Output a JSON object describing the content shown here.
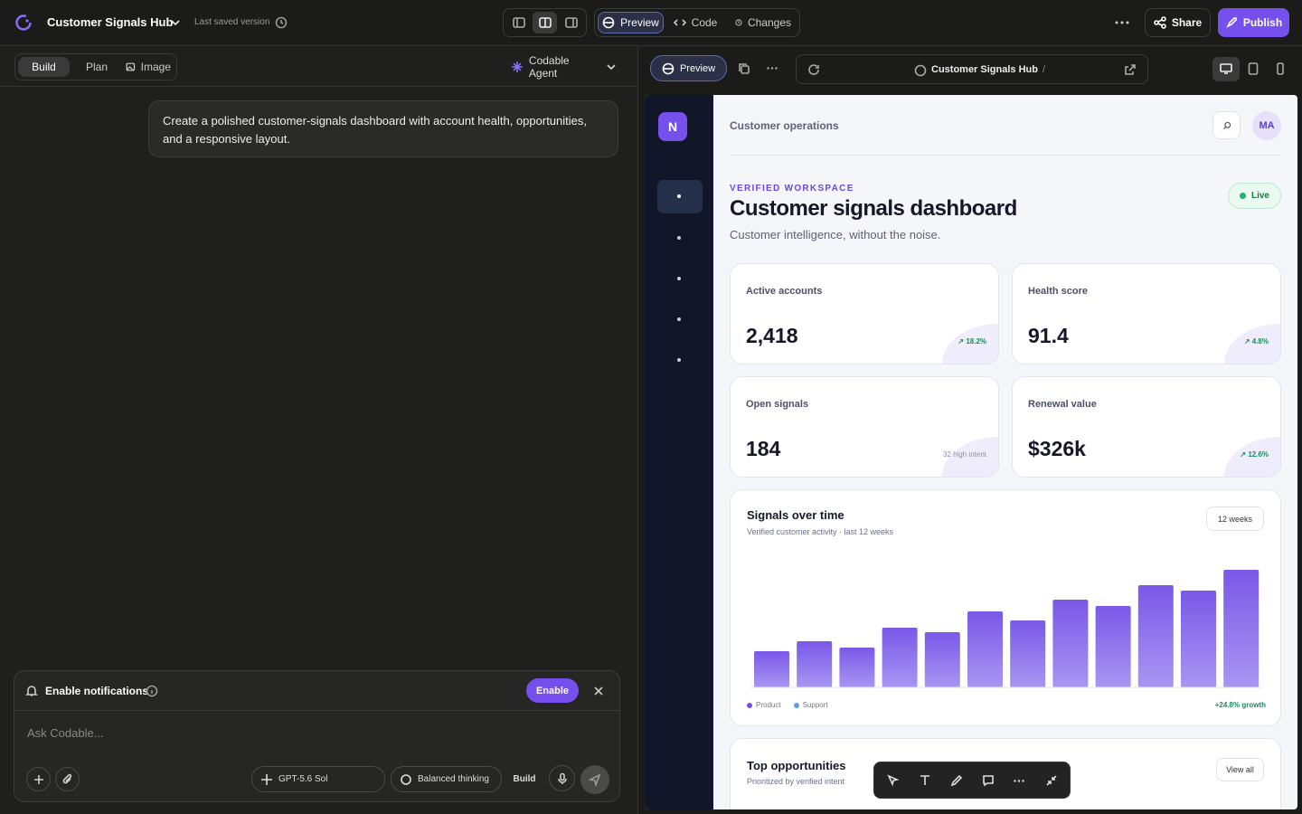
{
  "top_bar": {
    "app_name": "Customer Signals Hub",
    "saved": "Last saved version",
    "tabs": [
      "Preview",
      "Code",
      "Changes"
    ],
    "share": "Share",
    "publish": "Publish"
  },
  "left_panel": {
    "modes": [
      "Build",
      "Plan",
      "Image"
    ],
    "agent": "Codable Agent",
    "message": "Create a polished customer-signals dashboard with account health, opportunities, and a responsive layout.",
    "notification": {
      "title": "Enable notifications",
      "button": "Enable"
    },
    "composer": {
      "placeholder": "Ask Codable...",
      "model": "GPT-5.6 Sol",
      "thinking": "Balanced thinking",
      "mode": "Build"
    }
  },
  "preview_toolbar": {
    "button": "Preview",
    "url_title": "Customer Signals Hub",
    "url_suffix": "/"
  },
  "app": {
    "logo": "N",
    "header": "Customer operations",
    "avatar": "MA",
    "eyebrow": "VERIFIED WORKSPACE",
    "title": "Customer signals dashboard",
    "subtitle": "Customer intelligence, without the noise.",
    "status": "Live",
    "metrics": [
      {
        "label": "Active accounts",
        "value": "2,418",
        "badge": "↗ 18.2%"
      },
      {
        "label": "Health score",
        "value": "91.4",
        "badge": "↗ 4.8%"
      },
      {
        "label": "Open signals",
        "value": "184",
        "badge": "32 high intent"
      },
      {
        "label": "Renewal value",
        "value": "$326k",
        "badge": "↗ 12.6%"
      }
    ],
    "signals_chart": {
      "type": "bar",
      "title": "Signals over time",
      "subtitle": "Verified customer activity · last 12 weeks",
      "range": "12 weeks",
      "values": [
        40,
        51,
        44,
        66,
        61,
        84,
        74,
        97,
        90,
        113,
        107,
        130
      ],
      "legend": [
        "Product",
        "Support"
      ],
      "growth": "+24.8% growth"
    },
    "opportunities": {
      "title": "Top opportunities",
      "subtitle": "Prioritized by verified intent",
      "button": "View all"
    }
  }
}
